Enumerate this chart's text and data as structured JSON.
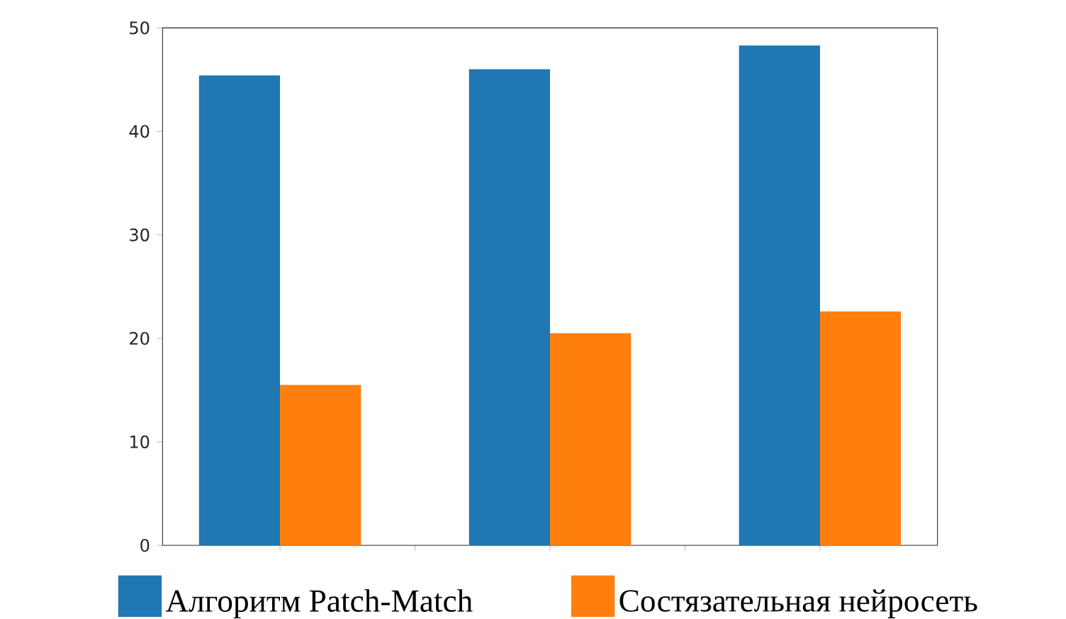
{
  "chart_data": {
    "type": "bar",
    "categories": [
      null,
      null,
      null
    ],
    "series": [
      {
        "name": "Алгоритм Patch-Match",
        "color": "#1f77b4",
        "values": [
          45.4,
          46.0,
          48.3
        ]
      },
      {
        "name": "Состязательная нейросеть",
        "color": "#ff7f0e",
        "values": [
          15.5,
          20.5,
          22.6
        ]
      }
    ],
    "ylim": [
      0,
      50
    ],
    "yticks": [
      0,
      10,
      20,
      30,
      40,
      50
    ],
    "legend": "bottom",
    "tick_labels": "y"
  }
}
